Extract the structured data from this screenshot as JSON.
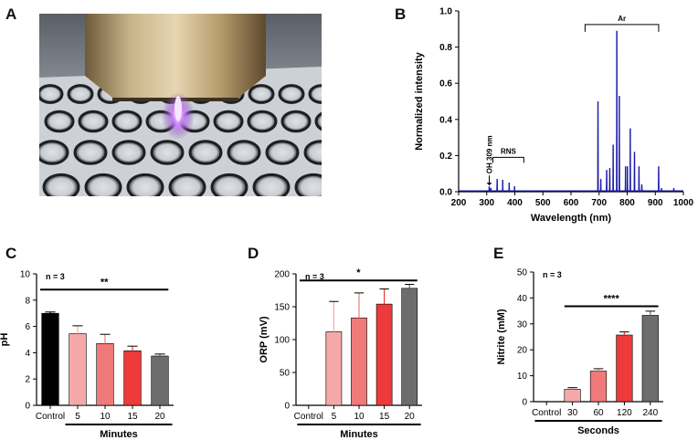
{
  "panels": {
    "A": "A",
    "B": "B",
    "C": "C",
    "D": "D",
    "E": "E"
  },
  "photo": {
    "description_icon": "plasma-jet-over-well-plate-photo"
  },
  "chart_data": [
    {
      "id": "B",
      "type": "line",
      "xlabel": "Wavelength (nm)",
      "ylabel": "Normalized intensity",
      "xlim": [
        200,
        1000
      ],
      "ylim": [
        0,
        1.0
      ],
      "xticks": [
        200,
        300,
        400,
        500,
        600,
        700,
        800,
        900,
        1000
      ],
      "yticks": [
        0.0,
        0.2,
        0.4,
        0.6,
        0.8,
        1.0
      ],
      "color": "#1a1aa8",
      "baseline": 0.005,
      "peaks": [
        {
          "x": 309,
          "y": 0.03
        },
        {
          "x": 315,
          "y": 0.02
        },
        {
          "x": 337,
          "y": 0.07
        },
        {
          "x": 357,
          "y": 0.065
        },
        {
          "x": 380,
          "y": 0.05
        },
        {
          "x": 399,
          "y": 0.03
        },
        {
          "x": 696,
          "y": 0.5
        },
        {
          "x": 706,
          "y": 0.07
        },
        {
          "x": 727,
          "y": 0.12
        },
        {
          "x": 738,
          "y": 0.13
        },
        {
          "x": 750,
          "y": 0.26
        },
        {
          "x": 763,
          "y": 0.89
        },
        {
          "x": 772,
          "y": 0.53
        },
        {
          "x": 794,
          "y": 0.14
        },
        {
          "x": 801,
          "y": 0.14
        },
        {
          "x": 811,
          "y": 0.35
        },
        {
          "x": 826,
          "y": 0.22
        },
        {
          "x": 842,
          "y": 0.14
        },
        {
          "x": 852,
          "y": 0.04
        },
        {
          "x": 912,
          "y": 0.14
        },
        {
          "x": 922,
          "y": 0.02
        },
        {
          "x": 966,
          "y": 0.02
        }
      ],
      "annotations": {
        "oh": "OH 309 nm",
        "rns": "RNS",
        "ar": "Ar",
        "rns_range": [
          322,
          432
        ],
        "ar_range": [
          650,
          912
        ],
        "oh_x": 309
      }
    },
    {
      "id": "C",
      "type": "bar",
      "categories": [
        "Control",
        "5",
        "10",
        "15",
        "20"
      ],
      "values": [
        7.0,
        5.45,
        4.7,
        4.15,
        3.75
      ],
      "errors": [
        0.1,
        0.6,
        0.7,
        0.35,
        0.15
      ],
      "colors": [
        "#000000",
        "#f4a9a8",
        "#f07a7a",
        "#ee3a3a",
        "#6d6d6d"
      ],
      "ylabel": "pH",
      "xlabel": "Minutes",
      "ylim": [
        0,
        10
      ],
      "yticks": [
        0,
        2,
        4,
        6,
        8,
        10
      ],
      "n_label": "n = 3",
      "sig_label": "**",
      "sig_range": [
        "Control",
        "20"
      ],
      "xlabel_range": [
        "5",
        "20"
      ]
    },
    {
      "id": "D",
      "type": "bar",
      "categories": [
        "Control",
        "5",
        "10",
        "15",
        "20"
      ],
      "values": [
        0,
        112,
        133,
        154,
        178
      ],
      "errors": [
        0,
        46,
        38,
        23,
        6
      ],
      "colors": [
        "#000000",
        "#f4a9a8",
        "#f07a7a",
        "#ee3a3a",
        "#6d6d6d"
      ],
      "ylabel": "ORP (mV)",
      "xlabel": "Minutes",
      "ylim": [
        0,
        200
      ],
      "yticks": [
        0,
        50,
        100,
        150,
        200
      ],
      "n_label": "n = 3",
      "sig_label": "*",
      "sig_range": [
        "Control",
        "20"
      ],
      "xlabel_range": [
        "Control",
        "20"
      ]
    },
    {
      "id": "E",
      "type": "bar",
      "categories": [
        "Control",
        "30",
        "60",
        "120",
        "240"
      ],
      "values": [
        0,
        4.8,
        11.8,
        25.7,
        33.3
      ],
      "errors": [
        0,
        0.6,
        0.9,
        1.2,
        1.6
      ],
      "colors": [
        "#000000",
        "#f4a9a8",
        "#f07a7a",
        "#ee3a3a",
        "#6d6d6d"
      ],
      "ylabel": "Nitrite (mM)",
      "xlabel": "Seconds",
      "ylim": [
        0,
        50
      ],
      "yticks": [
        0,
        10,
        20,
        30,
        40,
        50
      ],
      "n_label": "n = 3",
      "sig_label": "****",
      "sig_range": [
        "30",
        "240"
      ],
      "xlabel_range": [
        "Control",
        "240"
      ]
    }
  ]
}
